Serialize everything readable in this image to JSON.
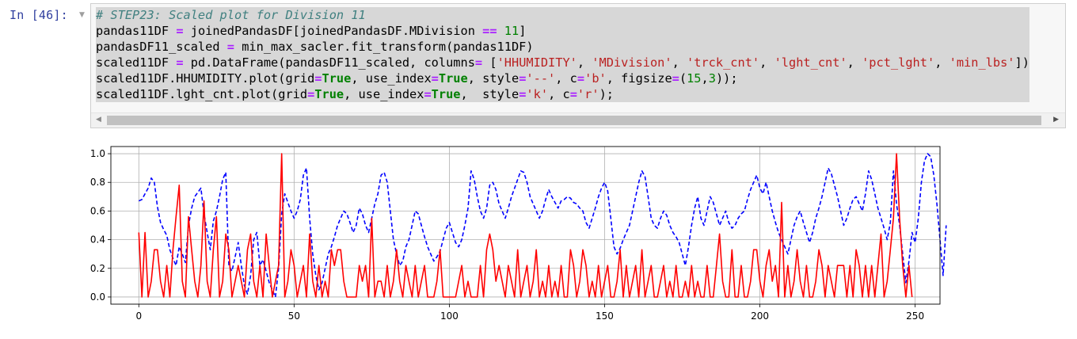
{
  "cell": {
    "prompt": "In [46]:",
    "code_lines": [
      [
        {
          "c": "cm",
          "t": "# STEP23: Scaled plot for Division 11"
        }
      ],
      [
        {
          "c": "",
          "t": "pandas11DF "
        },
        {
          "c": "op",
          "t": "="
        },
        {
          "c": "",
          "t": " joinedPandasDF[joinedPandasDF.MDivision "
        },
        {
          "c": "op",
          "t": "=="
        },
        {
          "c": "",
          "t": " "
        },
        {
          "c": "num",
          "t": "11"
        },
        {
          "c": "",
          "t": "]"
        }
      ],
      [
        {
          "c": "",
          "t": "pandasDF11_scaled "
        },
        {
          "c": "op",
          "t": "="
        },
        {
          "c": "",
          "t": " min_max_sacler.fit_transform(pandas11DF)"
        }
      ],
      [
        {
          "c": "",
          "t": "scaled11DF "
        },
        {
          "c": "op",
          "t": "="
        },
        {
          "c": "",
          "t": " pd.DataFrame(pandasDF11_scaled, columns"
        },
        {
          "c": "op",
          "t": "="
        },
        {
          "c": "",
          "t": " ["
        },
        {
          "c": "str",
          "t": "'HHUMIDITY'"
        },
        {
          "c": "",
          "t": ", "
        },
        {
          "c": "str",
          "t": "'MDivision'"
        },
        {
          "c": "",
          "t": ", "
        },
        {
          "c": "str",
          "t": "'trck_cnt'"
        },
        {
          "c": "",
          "t": ", "
        },
        {
          "c": "str",
          "t": "'lght_cnt'"
        },
        {
          "c": "",
          "t": ", "
        },
        {
          "c": "str",
          "t": "'pct_lght'"
        },
        {
          "c": "",
          "t": ", "
        },
        {
          "c": "str",
          "t": "'min_lbs'"
        },
        {
          "c": "",
          "t": "])"
        }
      ],
      [
        {
          "c": "",
          "t": "scaled11DF.HHUMIDITY.plot(grid"
        },
        {
          "c": "op",
          "t": "="
        },
        {
          "c": "kw",
          "t": "True"
        },
        {
          "c": "",
          "t": ", use_index"
        },
        {
          "c": "op",
          "t": "="
        },
        {
          "c": "kw",
          "t": "True"
        },
        {
          "c": "",
          "t": ", style"
        },
        {
          "c": "op",
          "t": "="
        },
        {
          "c": "str",
          "t": "'--'"
        },
        {
          "c": "",
          "t": ", c"
        },
        {
          "c": "op",
          "t": "="
        },
        {
          "c": "str",
          "t": "'b'"
        },
        {
          "c": "",
          "t": ", figsize"
        },
        {
          "c": "op",
          "t": "="
        },
        {
          "c": "",
          "t": "("
        },
        {
          "c": "num",
          "t": "15"
        },
        {
          "c": "",
          "t": ","
        },
        {
          "c": "num",
          "t": "3"
        },
        {
          "c": "",
          "t": "));"
        }
      ],
      [
        {
          "c": "",
          "t": "scaled11DF.lght_cnt.plot(grid"
        },
        {
          "c": "op",
          "t": "="
        },
        {
          "c": "kw",
          "t": "True"
        },
        {
          "c": "",
          "t": ", use_index"
        },
        {
          "c": "op",
          "t": "="
        },
        {
          "c": "kw",
          "t": "True"
        },
        {
          "c": "",
          "t": ",  style"
        },
        {
          "c": "op",
          "t": "="
        },
        {
          "c": "str",
          "t": "'k'"
        },
        {
          "c": "",
          "t": ", c"
        },
        {
          "c": "op",
          "t": "="
        },
        {
          "c": "str",
          "t": "'r'"
        },
        {
          "c": "",
          "t": ");"
        }
      ]
    ]
  },
  "chart_data": {
    "type": "line",
    "xlim": [
      -9,
      258
    ],
    "ylim": [
      -0.05,
      1.05
    ],
    "x_ticks": [
      0,
      50,
      100,
      150,
      200,
      250
    ],
    "y_ticks": [
      0.0,
      0.2,
      0.4,
      0.6,
      0.8,
      1.0
    ],
    "x_tick_labels": [
      "0",
      "50",
      "100",
      "150",
      "200",
      "250"
    ],
    "y_tick_labels": [
      "0.0",
      "0.2",
      "0.4",
      "0.6",
      "0.8",
      "1.0"
    ],
    "grid": true,
    "series": [
      {
        "style": "dashed",
        "color": "#0000ff",
        "values": [
          0.67,
          0.68,
          0.72,
          0.76,
          0.83,
          0.8,
          0.63,
          0.52,
          0.47,
          0.43,
          0.33,
          0.27,
          0.22,
          0.35,
          0.3,
          0.24,
          0.5,
          0.62,
          0.7,
          0.73,
          0.76,
          0.58,
          0.45,
          0.33,
          0.53,
          0.6,
          0.7,
          0.82,
          0.87,
          0.22,
          0.18,
          0.28,
          0.38,
          0.22,
          0.08,
          0.02,
          0.15,
          0.4,
          0.45,
          0.22,
          0.26,
          0.18,
          0.1,
          0.05,
          0.0,
          0.2,
          0.58,
          0.72,
          0.66,
          0.6,
          0.55,
          0.6,
          0.68,
          0.85,
          0.9,
          0.55,
          0.3,
          0.15,
          0.05,
          0.1,
          0.2,
          0.3,
          0.35,
          0.42,
          0.5,
          0.55,
          0.6,
          0.58,
          0.52,
          0.45,
          0.5,
          0.62,
          0.58,
          0.5,
          0.45,
          0.55,
          0.65,
          0.72,
          0.85,
          0.87,
          0.8,
          0.6,
          0.4,
          0.3,
          0.22,
          0.25,
          0.35,
          0.4,
          0.5,
          0.6,
          0.58,
          0.5,
          0.42,
          0.35,
          0.3,
          0.25,
          0.28,
          0.32,
          0.4,
          0.48,
          0.52,
          0.45,
          0.38,
          0.35,
          0.4,
          0.5,
          0.62,
          0.88,
          0.82,
          0.7,
          0.6,
          0.55,
          0.62,
          0.78,
          0.8,
          0.75,
          0.65,
          0.6,
          0.55,
          0.62,
          0.7,
          0.76,
          0.82,
          0.88,
          0.87,
          0.8,
          0.7,
          0.65,
          0.6,
          0.55,
          0.6,
          0.68,
          0.75,
          0.7,
          0.66,
          0.62,
          0.67,
          0.68,
          0.7,
          0.69,
          0.66,
          0.65,
          0.62,
          0.6,
          0.52,
          0.48,
          0.55,
          0.62,
          0.7,
          0.76,
          0.8,
          0.74,
          0.55,
          0.35,
          0.3,
          0.34,
          0.4,
          0.45,
          0.5,
          0.6,
          0.7,
          0.8,
          0.88,
          0.84,
          0.7,
          0.55,
          0.5,
          0.48,
          0.55,
          0.6,
          0.57,
          0.5,
          0.45,
          0.42,
          0.38,
          0.3,
          0.22,
          0.35,
          0.5,
          0.62,
          0.7,
          0.55,
          0.5,
          0.6,
          0.7,
          0.66,
          0.58,
          0.5,
          0.55,
          0.6,
          0.52,
          0.48,
          0.5,
          0.55,
          0.58,
          0.6,
          0.68,
          0.75,
          0.8,
          0.85,
          0.76,
          0.72,
          0.8,
          0.7,
          0.6,
          0.52,
          0.45,
          0.4,
          0.35,
          0.3,
          0.4,
          0.5,
          0.56,
          0.6,
          0.52,
          0.45,
          0.38,
          0.45,
          0.55,
          0.62,
          0.7,
          0.8,
          0.9,
          0.86,
          0.78,
          0.7,
          0.6,
          0.5,
          0.55,
          0.62,
          0.68,
          0.7,
          0.65,
          0.6,
          0.72,
          0.88,
          0.82,
          0.72,
          0.62,
          0.55,
          0.48,
          0.4,
          0.52,
          0.88,
          0.65,
          0.5,
          0.3,
          0.1,
          0.25,
          0.45,
          0.38,
          0.55,
          0.8,
          0.95,
          1.0,
          0.98,
          0.85,
          0.65,
          0.4,
          0.15,
          0.5
        ]
      },
      {
        "style": "solid",
        "color": "#ff0000",
        "values": [
          0.45,
          0.0,
          0.45,
          0.0,
          0.11,
          0.33,
          0.33,
          0.11,
          0.0,
          0.22,
          0.0,
          0.33,
          0.56,
          0.78,
          0.11,
          0.0,
          0.56,
          0.33,
          0.11,
          0.0,
          0.22,
          0.67,
          0.11,
          0.0,
          0.33,
          0.56,
          0.0,
          0.11,
          0.44,
          0.33,
          0.0,
          0.11,
          0.22,
          0.11,
          0.0,
          0.33,
          0.44,
          0.11,
          0.0,
          0.22,
          0.0,
          0.44,
          0.22,
          0.0,
          0.11,
          0.22,
          1.0,
          0.0,
          0.11,
          0.33,
          0.22,
          0.0,
          0.11,
          0.22,
          0.0,
          0.44,
          0.11,
          0.0,
          0.22,
          0.0,
          0.11,
          0.0,
          0.33,
          0.22,
          0.33,
          0.33,
          0.11,
          0.0,
          0.0,
          0.0,
          0.0,
          0.22,
          0.11,
          0.22,
          0.0,
          0.55,
          0.0,
          0.11,
          0.11,
          0.0,
          0.22,
          0.0,
          0.11,
          0.33,
          0.11,
          0.0,
          0.22,
          0.11,
          0.0,
          0.22,
          0.0,
          0.11,
          0.22,
          0.0,
          0.0,
          0.0,
          0.11,
          0.33,
          0.0,
          0.0,
          0.0,
          0.0,
          0.0,
          0.11,
          0.22,
          0.0,
          0.11,
          0.0,
          0.0,
          0.0,
          0.22,
          0.0,
          0.33,
          0.44,
          0.33,
          0.11,
          0.22,
          0.11,
          0.0,
          0.22,
          0.11,
          0.0,
          0.33,
          0.0,
          0.11,
          0.22,
          0.0,
          0.11,
          0.33,
          0.0,
          0.11,
          0.0,
          0.22,
          0.0,
          0.11,
          0.0,
          0.22,
          0.0,
          0.0,
          0.33,
          0.22,
          0.0,
          0.11,
          0.33,
          0.22,
          0.0,
          0.11,
          0.0,
          0.22,
          0.0,
          0.11,
          0.22,
          0.0,
          0.0,
          0.11,
          0.33,
          0.0,
          0.22,
          0.0,
          0.11,
          0.22,
          0.0,
          0.33,
          0.0,
          0.11,
          0.22,
          0.0,
          0.0,
          0.11,
          0.22,
          0.0,
          0.11,
          0.0,
          0.22,
          0.0,
          0.0,
          0.11,
          0.0,
          0.22,
          0.0,
          0.11,
          0.0,
          0.0,
          0.22,
          0.0,
          0.0,
          0.22,
          0.44,
          0.11,
          0.0,
          0.0,
          0.33,
          0.0,
          0.0,
          0.22,
          0.0,
          0.0,
          0.11,
          0.33,
          0.33,
          0.11,
          0.0,
          0.22,
          0.33,
          0.11,
          0.22,
          0.0,
          0.66,
          0.0,
          0.22,
          0.0,
          0.11,
          0.33,
          0.11,
          0.0,
          0.22,
          0.0,
          0.0,
          0.11,
          0.33,
          0.22,
          0.0,
          0.22,
          0.11,
          0.0,
          0.22,
          0.22,
          0.22,
          0.0,
          0.22,
          0.0,
          0.33,
          0.22,
          0.0,
          0.22,
          0.0,
          0.22,
          0.0,
          0.22,
          0.44,
          0.0,
          0.11,
          0.33,
          0.55,
          1.0,
          0.55,
          0.22,
          0.0,
          0.22,
          0.0
        ]
      }
    ]
  }
}
